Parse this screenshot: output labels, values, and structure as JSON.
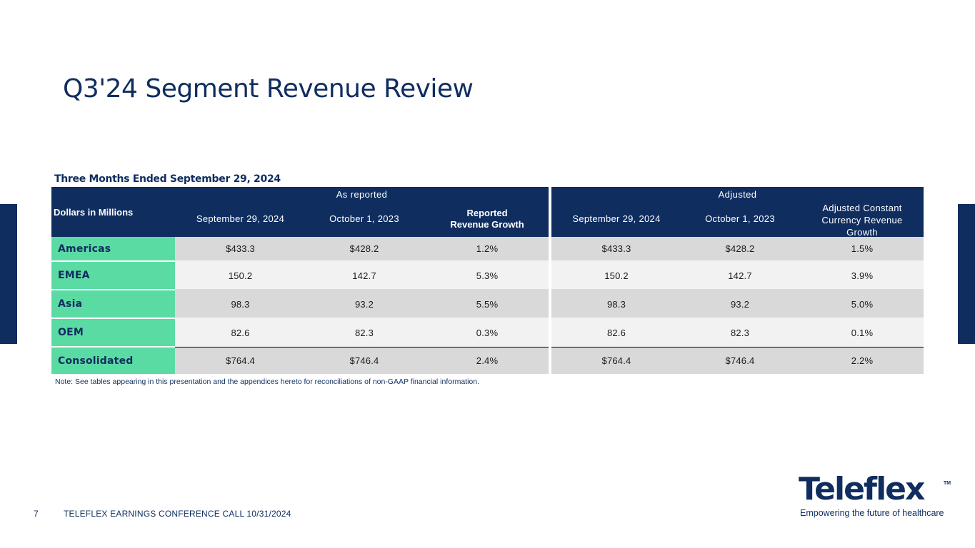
{
  "title": "Q3'24 Segment Revenue Review",
  "table_caption": "Three Months Ended September 29, 2024",
  "header": {
    "dollars_label": "Dollars in Millions",
    "group_reported": "As reported",
    "group_adjusted": "Adjusted",
    "reported_cols": [
      "September 29, 2024",
      "October 1, 2023",
      "Reported Revenue Growth"
    ],
    "adjusted_cols": [
      "September 29, 2024",
      "October 1, 2023",
      "Adjusted Constant Currency Revenue Growth"
    ]
  },
  "rows": [
    {
      "label": "Americas",
      "reported": [
        "$433.3",
        "$428.2",
        "1.2%"
      ],
      "adjusted": [
        "$433.3",
        "$428.2",
        "1.5%"
      ]
    },
    {
      "label": "EMEA",
      "reported": [
        "150.2",
        "142.7",
        "5.3%"
      ],
      "adjusted": [
        "150.2",
        "142.7",
        "3.9%"
      ]
    },
    {
      "label": "Asia",
      "reported": [
        "98.3",
        "93.2",
        "5.5%"
      ],
      "adjusted": [
        "98.3",
        "93.2",
        "5.0%"
      ]
    },
    {
      "label": "OEM",
      "reported": [
        "82.6",
        "82.3",
        "0.3%"
      ],
      "adjusted": [
        "82.6",
        "82.3",
        "0.1%"
      ]
    },
    {
      "label": "Consolidated",
      "reported": [
        "$764.4",
        "$746.4",
        "2.4%"
      ],
      "adjusted": [
        "$764.4",
        "$746.4",
        "2.2%"
      ]
    }
  ],
  "note": "Note: See tables appearing in this presentation and the appendices hereto for reconciliations of non-GAAP financial information.",
  "footer": {
    "page_number": "7",
    "text": "TELEFLEX EARNINGS CONFERENCE CALL 10/31/2024"
  },
  "logo": {
    "wordmark": "Teleflex",
    "trademark": "TM",
    "tagline": "Empowering the future of healthcare"
  },
  "colors": {
    "navy": "#0f2d5f",
    "green": "#5bdba4",
    "row_dark": "#d9d9d9",
    "row_light": "#f2f2f2"
  }
}
